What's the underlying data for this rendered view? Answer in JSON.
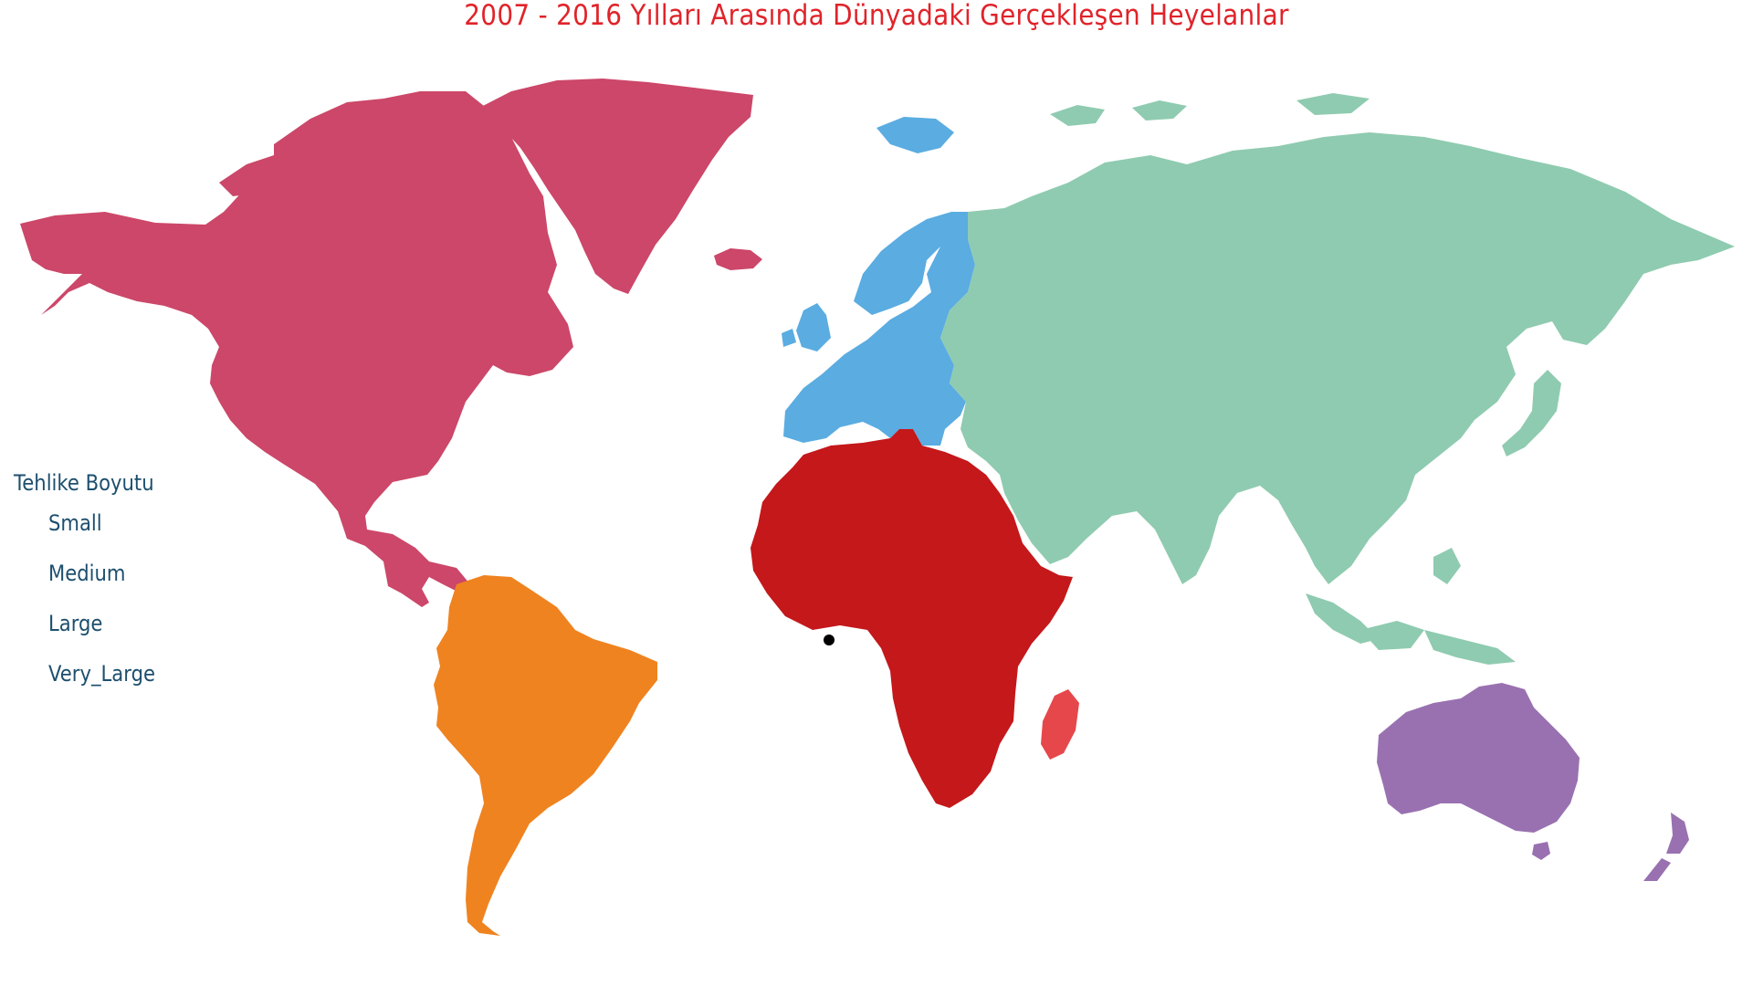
{
  "title": "2007 - 2016 Yılları Arasında Dünyadaki Gerçekleşen Heyelanlar",
  "legend": {
    "title": "Tehlike Boyutu",
    "items": [
      "Small",
      "Medium",
      "Large",
      "Very_Large"
    ]
  },
  "regions": [
    {
      "name": "north-america",
      "color": "#cc4769"
    },
    {
      "name": "south-america",
      "color": "#ef8320"
    },
    {
      "name": "europe",
      "color": "#5aace1"
    },
    {
      "name": "africa",
      "color": "#c4181b"
    },
    {
      "name": "asia",
      "color": "#8fcbb0"
    },
    {
      "name": "oceania",
      "color": "#9971b0"
    }
  ],
  "madagascar_color": "#e6474b",
  "marker_color": "#000000"
}
